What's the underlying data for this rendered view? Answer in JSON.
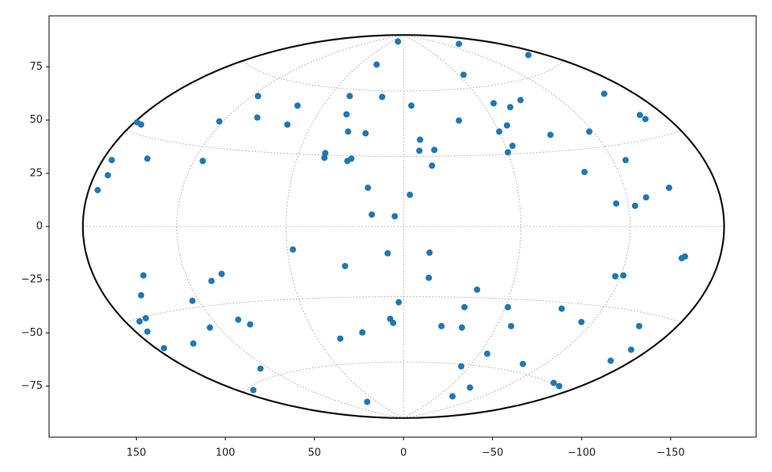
{
  "chart_data": {
    "type": "scatter",
    "projection": "hammer",
    "grid": true,
    "color": "#1f77b4",
    "xlim": [
      199,
      -198
    ],
    "ylim": [
      -99,
      99
    ],
    "xticks": [
      150,
      100,
      50,
      0,
      {
        "value": -50,
        "label": "−50"
      },
      {
        "value": -100,
        "label": "−100"
      },
      {
        "value": -150,
        "label": "−150"
      }
    ],
    "yticks": [
      {
        "value": -75,
        "label": "−75"
      },
      {
        "value": -50,
        "label": "−50"
      },
      {
        "value": -25,
        "label": "−25"
      },
      0,
      25,
      50,
      75
    ],
    "x": [
      3.1,
      -31.1,
      -70.1,
      15.1,
      -33.7,
      81.7,
      30.2,
      12.0,
      -112.7,
      -65.7,
      59.5,
      -4.4,
      -50.6,
      -59.9,
      -132.7,
      -135.8,
      82.1,
      32.0,
      149.6,
      147.3,
      103.4,
      65.2,
      -31.1,
      -58.1,
      31.1,
      21.3,
      -53.7,
      -104.3,
      -82.5,
      -9.3,
      -61.2,
      -17.3,
      -8.9,
      -58.6,
      43.9,
      163.8,
      143.8,
      112.7,
      44.4,
      29.3,
      31.5,
      -124.7,
      -16.0,
      -101.6,
      166.0,
      20.0,
      -149.1,
      -3.6,
      171.7,
      -136.2,
      -119.4,
      -130.0,
      17.8,
      4.9,
      62.1,
      -14.6,
      8.9,
      -158.0,
      -156.2,
      32.8,
      146.0,
      102.1,
      -14.2,
      -118.9,
      -123.4,
      107.8,
      -41.3,
      147.3,
      118.5,
      2.7,
      -34.2,
      -58.6,
      -88.8,
      144.7,
      7.5,
      92.8,
      86.1,
      5.8,
      148.2,
      -99.9,
      -21.3,
      -32.8,
      -60.4,
      -132.3,
      108.7,
      143.8,
      23.1,
      35.5,
      118.0,
      134.5,
      -127.8,
      -47.0,
      -116.3,
      -67.0,
      -32.4,
      80.3,
      -84.3,
      -87.4,
      -37.3,
      84.3,
      -27.5,
      20.4
    ],
    "values": [
      86.9,
      85.8,
      80.6,
      76.1,
      71.3,
      61.3,
      61.3,
      60.9,
      62.4,
      59.4,
      56.8,
      56.8,
      57.9,
      56.1,
      52.4,
      50.5,
      51.2,
      52.7,
      49.0,
      47.9,
      49.4,
      47.9,
      49.8,
      47.5,
      44.6,
      43.8,
      44.6,
      44.6,
      43.1,
      40.8,
      37.9,
      36.0,
      35.6,
      34.9,
      34.5,
      31.2,
      31.9,
      30.8,
      32.3,
      31.9,
      30.8,
      31.2,
      28.6,
      25.6,
      24.1,
      18.2,
      18.2,
      14.9,
      17.1,
      13.7,
      10.8,
      9.7,
      5.6,
      4.8,
      -10.8,
      -12.3,
      -12.6,
      -14.1,
      -14.9,
      -18.6,
      -23.0,
      -22.3,
      -24.1,
      -23.4,
      -23.0,
      -25.6,
      -29.7,
      -32.3,
      -34.9,
      -35.6,
      -37.9,
      -37.9,
      -38.6,
      -43.1,
      -43.4,
      -43.8,
      -46.0,
      -45.3,
      -44.6,
      -44.9,
      -46.8,
      -47.5,
      -46.8,
      -46.8,
      -47.5,
      -49.4,
      -49.8,
      -52.7,
      -55.0,
      -57.2,
      -57.9,
      -59.8,
      -63.1,
      -64.6,
      -65.7,
      -66.8,
      -73.5,
      -75.0,
      -75.7,
      -76.9,
      -79.8,
      -82.4
    ]
  }
}
